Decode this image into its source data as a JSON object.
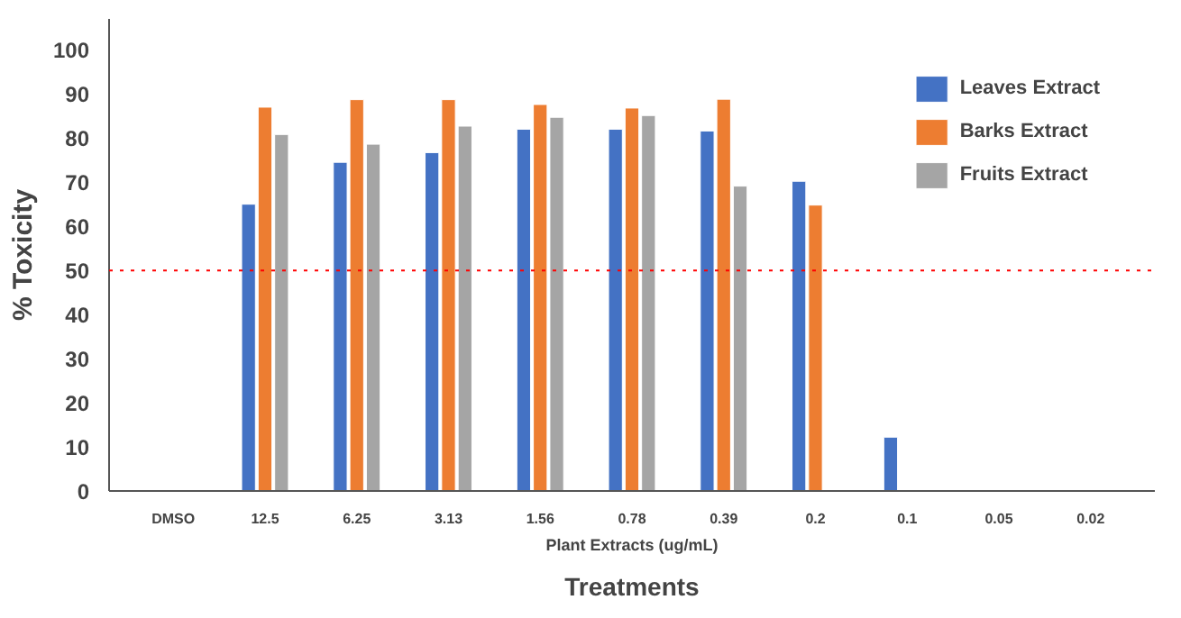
{
  "chart_data": {
    "type": "bar",
    "ylabel": "% Toxicity",
    "xlabel": "Plant Extracts (ug/mL)",
    "annotations": [
      "Treatments"
    ],
    "categories": [
      "DMSO",
      "12.5",
      "6.25",
      "3.13",
      "1.56",
      "0.78",
      "0.39",
      "0.2",
      "0.1",
      "0.05",
      "0.02"
    ],
    "series": [
      {
        "name": "Leaves Extract",
        "color": "#4472c4",
        "values": [
          null,
          65,
          74.5,
          76.7,
          82,
          82,
          81.6,
          70.2,
          12.2,
          null,
          null
        ]
      },
      {
        "name": "Barks Extract",
        "color": "#ed7d31",
        "values": [
          null,
          87,
          88.7,
          88.7,
          87.6,
          86.8,
          88.8,
          64.8,
          null,
          null,
          null
        ]
      },
      {
        "name": "Fruits Extract",
        "color": "#a5a5a5",
        "values": [
          null,
          80.8,
          78.6,
          82.7,
          84.7,
          85.1,
          69.1,
          null,
          null,
          null,
          null
        ]
      }
    ],
    "ylim": [
      0,
      107
    ],
    "yticks": [
      0,
      10,
      20,
      30,
      40,
      50,
      60,
      70,
      80,
      90,
      100
    ],
    "ref_lines": [
      {
        "axis": "y",
        "value": 50,
        "color": "#ff0000",
        "line_style": "dotted"
      }
    ],
    "legend": "top right",
    "grid": false
  }
}
